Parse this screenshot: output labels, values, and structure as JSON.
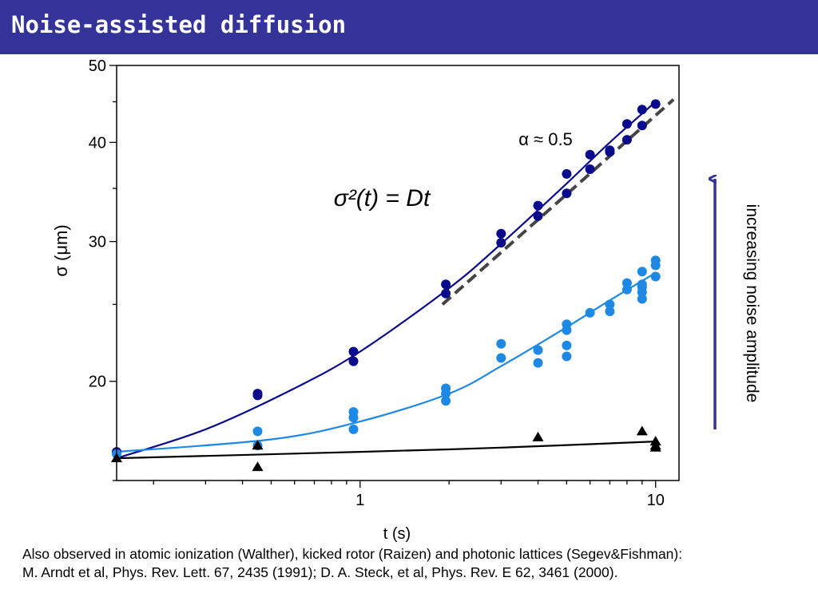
{
  "slide": {
    "title": "Noise-assisted diffusion",
    "footer": [
      "Also observed in atomic ionization (Walther), kicked rotor (Raizen) and photonic lattices (Segev&Fishman):",
      "M. Arndt et al, Phys. Rev. Lett. 67, 2435 (1991); D. A. Steck, et al, Phys. Rev. E 62, 3461 (2000)."
    ],
    "arrow_label": "increasing noise amplitude",
    "alpha_label": "α ≈ 0.5",
    "equation_label": "σ²(t) = Dt",
    "colors": {
      "title_bar": "#333399",
      "arrow": "#333399"
    }
  },
  "chart_data": {
    "type": "scatter",
    "xlabel": "t (s)",
    "ylabel": "σ (μm)",
    "xscale": "log",
    "yscale": "log",
    "xlim": [
      0.15,
      12
    ],
    "ylim": [
      15,
      50
    ],
    "x_ticks": [
      {
        "value": 1,
        "label": "1"
      },
      {
        "value": 10,
        "label": "10"
      }
    ],
    "y_ticks": [
      {
        "value": 20,
        "label": "20"
      },
      {
        "value": 30,
        "label": "30"
      },
      {
        "value": 40,
        "label": "40"
      },
      {
        "value": 50,
        "label": "50"
      }
    ],
    "series": [
      {
        "color": "#0a0a8c",
        "marker": "circle",
        "points": [
          [
            0.15,
            16.3
          ],
          [
            0.45,
            19.3
          ],
          [
            0.45,
            19.2
          ],
          [
            0.95,
            21.8
          ],
          [
            0.95,
            21.2
          ],
          [
            1.95,
            26.5
          ],
          [
            1.95,
            25.8
          ],
          [
            3,
            30.7
          ],
          [
            3,
            29.9
          ],
          [
            4,
            33.3
          ],
          [
            4,
            32.3
          ],
          [
            5,
            36.5
          ],
          [
            5,
            34.5
          ],
          [
            6,
            38.6
          ],
          [
            6,
            37.0
          ],
          [
            7,
            39.1
          ],
          [
            7,
            38.9
          ],
          [
            8,
            42.2
          ],
          [
            8,
            40.3
          ],
          [
            9,
            44.0
          ],
          [
            9,
            42.0
          ],
          [
            10,
            44.7
          ]
        ],
        "fit": [
          [
            0.15,
            16.0
          ],
          [
            0.3,
            17.4
          ],
          [
            0.6,
            19.6
          ],
          [
            1,
            21.8
          ],
          [
            2,
            26.2
          ],
          [
            3,
            29.8
          ],
          [
            5,
            35.5
          ],
          [
            7,
            40.0
          ],
          [
            10,
            45.0
          ]
        ]
      },
      {
        "color": "#1e88e5",
        "marker": "circle",
        "points": [
          [
            0.15,
            16.2
          ],
          [
            0.45,
            17.3
          ],
          [
            0.45,
            16.6
          ],
          [
            0.95,
            18.3
          ],
          [
            0.95,
            18.0
          ],
          [
            0.95,
            17.4
          ],
          [
            1.95,
            19.6
          ],
          [
            1.95,
            19.3
          ],
          [
            1.95,
            18.9
          ],
          [
            3,
            22.3
          ],
          [
            3,
            21.4
          ],
          [
            4,
            21.9
          ],
          [
            4,
            21.1
          ],
          [
            5,
            23.6
          ],
          [
            5,
            23.2
          ],
          [
            5,
            22.2
          ],
          [
            5,
            21.5
          ],
          [
            6,
            24.4
          ],
          [
            7,
            25.0
          ],
          [
            7,
            24.5
          ],
          [
            8,
            26.1
          ],
          [
            8,
            26.6
          ],
          [
            9,
            25.4
          ],
          [
            9,
            25.9
          ],
          [
            9,
            26.3
          ],
          [
            9,
            26.5
          ],
          [
            9,
            27.5
          ],
          [
            10,
            27.1
          ],
          [
            10,
            28.0
          ],
          [
            10,
            28.4
          ]
        ],
        "fit": [
          [
            0.15,
            16.3
          ],
          [
            0.5,
            16.9
          ],
          [
            1,
            17.8
          ],
          [
            2,
            19.3
          ],
          [
            3,
            20.9
          ],
          [
            5,
            23.4
          ],
          [
            7,
            25.3
          ],
          [
            10,
            27.4
          ]
        ]
      },
      {
        "color": "#000000",
        "marker": "triangle",
        "points": [
          [
            0.15,
            16.0
          ],
          [
            0.45,
            16.6
          ],
          [
            0.45,
            15.6
          ],
          [
            4,
            17.0
          ],
          [
            9,
            17.3
          ],
          [
            10,
            16.8
          ],
          [
            10,
            16.6
          ],
          [
            10,
            16.5
          ]
        ],
        "fit": [
          [
            0.15,
            16.0
          ],
          [
            1,
            16.3
          ],
          [
            3,
            16.5
          ],
          [
            10,
            16.8
          ]
        ]
      }
    ],
    "reference_line": {
      "style": "dashed",
      "color": "#444444",
      "slope": 0.5,
      "points": [
        [
          1.9,
          25.0
        ],
        [
          11.5,
          45.3
        ]
      ]
    }
  }
}
